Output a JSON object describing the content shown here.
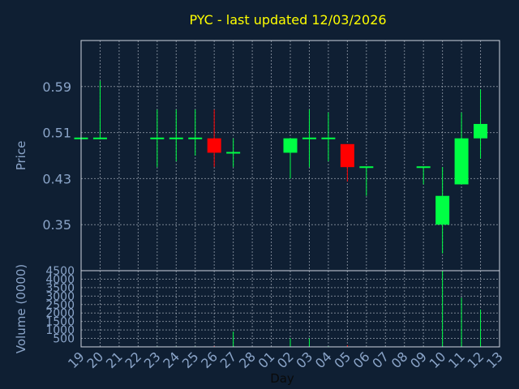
{
  "chart_data": {
    "type": "candlestick",
    "title": "PYC - last updated 12/03/2026",
    "ylabel": "Price",
    "volume_label": "Volume (0000)",
    "xlabel": "Day",
    "ylim": [
      0.27,
      0.67
    ],
    "price_ticks": [
      "0.59",
      "0.51",
      "0.43",
      "0.35"
    ],
    "volume_ylim": [
      0,
      4500
    ],
    "volume_ticks": [
      "4500",
      "4000",
      "3500",
      "3000",
      "2500",
      "2000",
      "1500",
      "1000",
      "500"
    ],
    "x_ticks": [
      "19",
      "20",
      "21",
      "22",
      "23",
      "24",
      "25",
      "26",
      "27",
      "28",
      "01",
      "02",
      "03",
      "04",
      "05",
      "06",
      "07",
      "08",
      "09",
      "10",
      "11",
      "12",
      "13"
    ],
    "colors": {
      "up": "#00ff44",
      "down": "#ff0000",
      "background": "#0f1f33",
      "title": "#ffff00"
    },
    "candles": [
      {
        "x": 0,
        "open": 0.5,
        "close": 0.5,
        "high": 0.5,
        "low": 0.5,
        "volume": 0
      },
      {
        "x": 1,
        "open": 0.5,
        "close": 0.5,
        "high": 0.6,
        "low": 0.5,
        "volume": 20
      },
      {
        "x": 4,
        "open": 0.5,
        "close": 0.5,
        "high": 0.55,
        "low": 0.45,
        "volume": 30
      },
      {
        "x": 5,
        "open": 0.5,
        "close": 0.5,
        "high": 0.55,
        "low": 0.46,
        "volume": 30
      },
      {
        "x": 6,
        "open": 0.5,
        "close": 0.5,
        "high": 0.55,
        "low": 0.47,
        "volume": 30
      },
      {
        "x": 7,
        "open": 0.5,
        "close": 0.475,
        "high": 0.55,
        "low": 0.45,
        "volume": 50
      },
      {
        "x": 8,
        "open": 0.475,
        "close": 0.475,
        "high": 0.5,
        "low": 0.45,
        "volume": 900
      },
      {
        "x": 11,
        "open": 0.475,
        "close": 0.5,
        "high": 0.5,
        "low": 0.43,
        "volume": 500
      },
      {
        "x": 12,
        "open": 0.5,
        "close": 0.5,
        "high": 0.55,
        "low": 0.45,
        "volume": 500
      },
      {
        "x": 13,
        "open": 0.5,
        "close": 0.5,
        "high": 0.545,
        "low": 0.46,
        "volume": 40
      },
      {
        "x": 14,
        "open": 0.49,
        "close": 0.45,
        "high": 0.49,
        "low": 0.425,
        "volume": 100
      },
      {
        "x": 15,
        "open": 0.45,
        "close": 0.45,
        "high": 0.45,
        "low": 0.4,
        "volume": 20
      },
      {
        "x": 18,
        "open": 0.45,
        "close": 0.45,
        "high": 0.45,
        "low": 0.42,
        "volume": 20
      },
      {
        "x": 19,
        "open": 0.35,
        "close": 0.4,
        "high": 0.45,
        "low": 0.3,
        "volume": 4500
      },
      {
        "x": 20,
        "open": 0.42,
        "close": 0.5,
        "high": 0.545,
        "low": 0.42,
        "volume": 2900
      },
      {
        "x": 21,
        "open": 0.5,
        "close": 0.525,
        "high": 0.585,
        "low": 0.465,
        "volume": 2200
      }
    ]
  }
}
